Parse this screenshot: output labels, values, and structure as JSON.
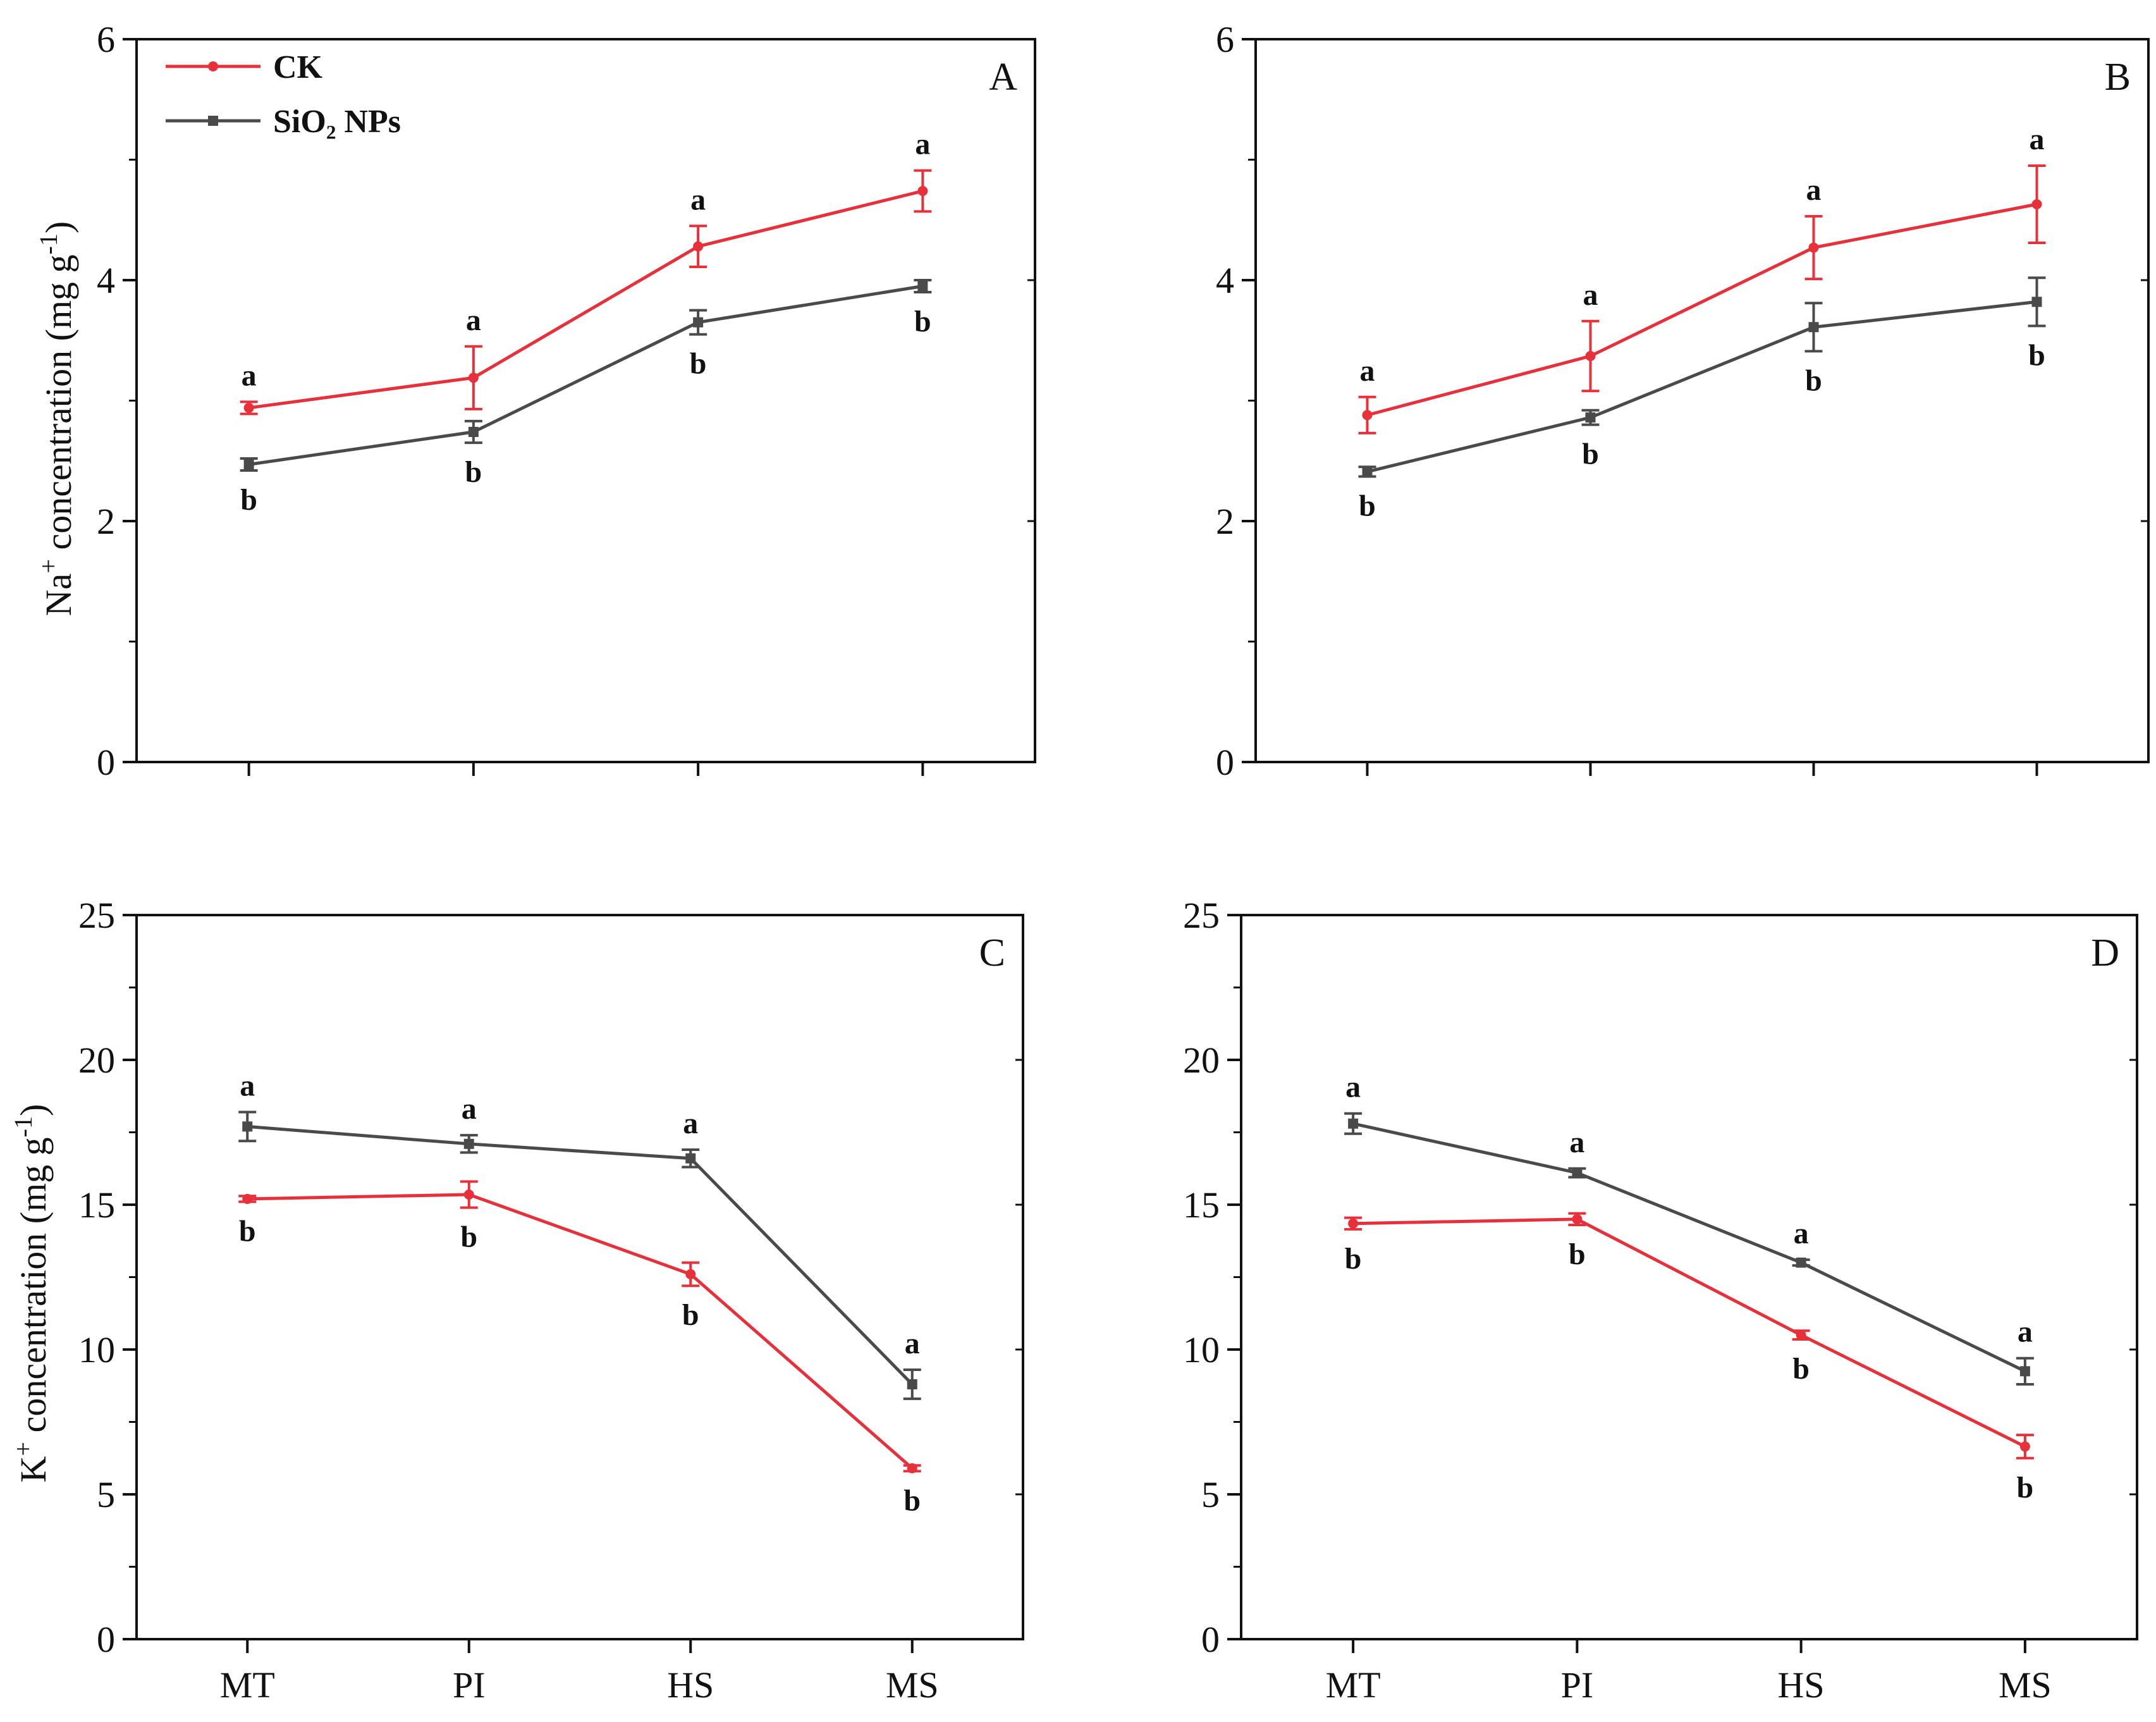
{
  "figure": {
    "x_categories": [
      "MT",
      "PI",
      "HS",
      "MS"
    ],
    "legend": [
      {
        "label": "CK",
        "color": "#e8303a",
        "marker": "circle"
      },
      {
        "label": "SiO₂ NPs",
        "color": "#4a4a4a",
        "marker": "square"
      }
    ],
    "y_title_na": {
      "prefix": "Na",
      "sup": "+",
      "middle": " concentration (mg g",
      "sup2": "-1",
      "suffix": ")"
    },
    "y_title_k": {
      "prefix": "K",
      "sup": "+",
      "middle": " concentration (mg g",
      "sup2": "-1",
      "suffix": ")"
    }
  },
  "chart_data": [
    {
      "type": "line",
      "panel": "A",
      "title": "",
      "xlabel": "",
      "ylabel": "Na+ concentration (mg g-1)",
      "ylim": [
        0,
        6
      ],
      "yticks": [
        "0",
        "2",
        "4",
        "6"
      ],
      "show_x_tick_labels": false,
      "categories": [
        "MT",
        "PI",
        "HS",
        "MS"
      ],
      "series": [
        {
          "name": "CK",
          "values": [
            2.94,
            3.19,
            4.28,
            4.74
          ],
          "errors": [
            0.05,
            0.26,
            0.17,
            0.17
          ],
          "letters": [
            "a",
            "a",
            "a",
            "a"
          ],
          "letter_pos": "above"
        },
        {
          "name": "SiO₂ NPs",
          "values": [
            2.47,
            2.74,
            3.65,
            3.95
          ],
          "errors": [
            0.05,
            0.09,
            0.1,
            0.05
          ],
          "letters": [
            "b",
            "b",
            "b",
            "b"
          ],
          "letter_pos": "below"
        }
      ]
    },
    {
      "type": "line",
      "panel": "B",
      "title": "",
      "xlabel": "",
      "ylabel": "",
      "ylim": [
        0,
        6
      ],
      "yticks": [
        "0",
        "2",
        "4",
        "6"
      ],
      "show_x_tick_labels": false,
      "categories": [
        "MT",
        "PI",
        "HS",
        "MS"
      ],
      "series": [
        {
          "name": "CK",
          "values": [
            2.88,
            3.37,
            4.27,
            4.63
          ],
          "errors": [
            0.15,
            0.29,
            0.26,
            0.32
          ],
          "letters": [
            "a",
            "a",
            "a",
            "a"
          ],
          "letter_pos": "above"
        },
        {
          "name": "SiO₂ NPs",
          "values": [
            2.41,
            2.86,
            3.61,
            3.82
          ],
          "errors": [
            0.04,
            0.06,
            0.2,
            0.2
          ],
          "letters": [
            "b",
            "b",
            "b",
            "b"
          ],
          "letter_pos": "below"
        }
      ]
    },
    {
      "type": "line",
      "panel": "C",
      "title": "",
      "xlabel": "",
      "ylabel": "K+ concentration (mg g-1)",
      "ylim": [
        0,
        25
      ],
      "yticks": [
        "0",
        "5",
        "10",
        "15",
        "20",
        "25"
      ],
      "show_x_tick_labels": true,
      "categories": [
        "MT",
        "PI",
        "HS",
        "MS"
      ],
      "series": [
        {
          "name": "CK",
          "values": [
            15.2,
            15.35,
            12.6,
            5.9
          ],
          "errors": [
            0.1,
            0.45,
            0.4,
            0.1
          ],
          "letters": [
            "b",
            "b",
            "b",
            "b"
          ],
          "letter_pos": "below"
        },
        {
          "name": "SiO₂ NPs",
          "values": [
            17.7,
            17.1,
            16.6,
            8.8
          ],
          "errors": [
            0.5,
            0.3,
            0.3,
            0.5
          ],
          "letters": [
            "a",
            "a",
            "a",
            "a"
          ],
          "letter_pos": "above"
        }
      ]
    },
    {
      "type": "line",
      "panel": "D",
      "title": "",
      "xlabel": "",
      "ylabel": "",
      "ylim": [
        0,
        25
      ],
      "yticks": [
        "0",
        "5",
        "10",
        "15",
        "20",
        "25"
      ],
      "show_x_tick_labels": true,
      "categories": [
        "MT",
        "PI",
        "HS",
        "MS"
      ],
      "series": [
        {
          "name": "CK",
          "values": [
            14.35,
            14.5,
            10.5,
            6.65
          ],
          "errors": [
            0.2,
            0.2,
            0.15,
            0.4
          ],
          "letters": [
            "b",
            "b",
            "b",
            "b"
          ],
          "letter_pos": "below"
        },
        {
          "name": "SiO₂ NPs",
          "values": [
            17.8,
            16.1,
            13.0,
            9.25
          ],
          "errors": [
            0.35,
            0.15,
            0.1,
            0.45
          ],
          "letters": [
            "a",
            "a",
            "a",
            "a"
          ],
          "letter_pos": "above"
        }
      ]
    }
  ]
}
